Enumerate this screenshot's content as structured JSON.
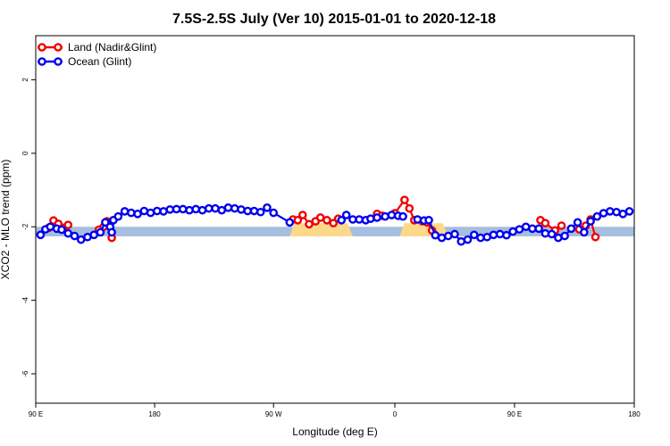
{
  "chart_data": {
    "type": "line",
    "title": "7.5S-2.5S July (Ver 10)   2015-01-01 to 2020-12-18",
    "xlabel": "Longitude (deg E)",
    "ylabel": "XCO2 - MLO trend (ppm)",
    "xlim": [
      90,
      460
    ],
    "ylim": [
      -6.8,
      3.2
    ],
    "xticks": [
      {
        "value": 90,
        "label": "90 E"
      },
      {
        "value": 163.5,
        "label": "180"
      },
      {
        "value": 237,
        "label": "90 W"
      },
      {
        "value": 312,
        "label": "0"
      },
      {
        "value": 386,
        "label": "90 E"
      },
      {
        "value": 460,
        "label": "180"
      }
    ],
    "yticks": [
      {
        "value": 2,
        "label": "2"
      },
      {
        "value": 0,
        "label": "0"
      },
      {
        "value": -2,
        "label": "-2"
      },
      {
        "value": -4,
        "label": "-4"
      },
      {
        "value": -6,
        "label": "-6"
      }
    ],
    "legend_position": "top-left",
    "colors": {
      "land": "#ee0000",
      "ocean": "#0000ee",
      "ocean_band": "#a6bedf",
      "land_band": "#fcd98a"
    },
    "background_band": {
      "y_low": -2.26,
      "y_high": -2.0
    },
    "land_band_segments": [
      [
        247,
        286
      ],
      [
        315,
        345
      ]
    ],
    "series": [
      {
        "name": "Land (Nadir&Glint)",
        "color": "#ee0000",
        "segments": [
          [
            [
              98,
              -2.03
            ],
            [
              101,
              -1.83
            ],
            [
              104,
              -1.92
            ],
            [
              107,
              -2.03
            ],
            [
              110,
              -1.95
            ]
          ],
          [
            [
              129,
              -2.08
            ],
            [
              132,
              -2.0
            ],
            [
              134,
              -1.85
            ],
            [
              137,
              -2.3
            ]
          ],
          [
            [
              249,
              -1.8
            ],
            [
              252,
              -1.82
            ],
            [
              255,
              -1.68
            ],
            [
              259,
              -1.93
            ],
            [
              263,
              -1.85
            ],
            [
              266,
              -1.75
            ],
            [
              270,
              -1.82
            ],
            [
              274,
              -1.9
            ],
            [
              277,
              -1.78
            ]
          ],
          [
            [
              301,
              -1.65
            ],
            [
              304,
              -1.7
            ],
            [
              312,
              -1.63
            ],
            [
              318,
              -1.27
            ],
            [
              321,
              -1.5
            ],
            [
              324,
              -1.82
            ],
            [
              329,
              -1.85
            ],
            [
              332,
              -1.88
            ],
            [
              335,
              -2.1
            ]
          ],
          [
            [
              402,
              -1.82
            ],
            [
              405,
              -1.9
            ],
            [
              411,
              -2.1
            ],
            [
              415,
              -1.97
            ]
          ],
          [
            [
              426,
              -2.07
            ],
            [
              430,
              -1.97
            ],
            [
              433,
              -1.8
            ],
            [
              436,
              -2.28
            ]
          ]
        ]
      },
      {
        "name": "Ocean (Glint)",
        "color": "#0000ee",
        "segments": [
          [
            [
              93,
              -2.22
            ],
            [
              96,
              -2.07
            ],
            [
              99,
              -2.0
            ],
            [
              103,
              -2.05
            ],
            [
              106,
              -2.08
            ],
            [
              110,
              -2.18
            ],
            [
              114,
              -2.25
            ],
            [
              118,
              -2.35
            ],
            [
              122,
              -2.28
            ],
            [
              126,
              -2.22
            ],
            [
              130,
              -2.15
            ],
            [
              133,
              -1.88
            ],
            [
              136,
              -2.0
            ],
            [
              137,
              -2.15
            ],
            [
              138,
              -1.82
            ],
            [
              141,
              -1.72
            ],
            [
              145,
              -1.58
            ],
            [
              149,
              -1.62
            ],
            [
              153,
              -1.65
            ],
            [
              157,
              -1.57
            ],
            [
              161,
              -1.62
            ],
            [
              165,
              -1.57
            ],
            [
              169,
              -1.58
            ],
            [
              173,
              -1.53
            ],
            [
              177,
              -1.52
            ],
            [
              181,
              -1.52
            ],
            [
              185,
              -1.55
            ],
            [
              189,
              -1.52
            ],
            [
              193,
              -1.55
            ],
            [
              197,
              -1.5
            ],
            [
              201,
              -1.5
            ],
            [
              205,
              -1.55
            ],
            [
              209,
              -1.48
            ],
            [
              213,
              -1.5
            ],
            [
              217,
              -1.53
            ],
            [
              221,
              -1.57
            ],
            [
              225,
              -1.57
            ],
            [
              229,
              -1.6
            ],
            [
              233,
              -1.48
            ],
            [
              237,
              -1.62
            ],
            [
              247,
              -1.88
            ]
          ],
          [
            [
              279,
              -1.82
            ],
            [
              282,
              -1.68
            ],
            [
              286,
              -1.8
            ],
            [
              290,
              -1.8
            ],
            [
              294,
              -1.82
            ],
            [
              297,
              -1.78
            ],
            [
              301,
              -1.75
            ],
            [
              306,
              -1.72
            ],
            [
              310,
              -1.68
            ],
            [
              314,
              -1.7
            ],
            [
              317,
              -1.72
            ]
          ],
          [
            [
              326,
              -1.8
            ],
            [
              330,
              -1.83
            ],
            [
              333,
              -1.82
            ],
            [
              337,
              -2.23
            ],
            [
              341,
              -2.3
            ],
            [
              345,
              -2.25
            ],
            [
              349,
              -2.2
            ],
            [
              353,
              -2.4
            ],
            [
              357,
              -2.35
            ],
            [
              361,
              -2.22
            ],
            [
              365,
              -2.3
            ],
            [
              369,
              -2.28
            ],
            [
              373,
              -2.22
            ],
            [
              377,
              -2.2
            ],
            [
              381,
              -2.23
            ],
            [
              385,
              -2.13
            ],
            [
              389,
              -2.07
            ],
            [
              393,
              -2.0
            ],
            [
              397,
              -2.05
            ],
            [
              401,
              -2.05
            ],
            [
              405,
              -2.18
            ],
            [
              409,
              -2.2
            ],
            [
              413,
              -2.3
            ],
            [
              417,
              -2.25
            ],
            [
              421,
              -2.05
            ],
            [
              425,
              -1.88
            ],
            [
              429,
              -2.15
            ],
            [
              433,
              -1.85
            ],
            [
              437,
              -1.72
            ],
            [
              441,
              -1.63
            ],
            [
              445,
              -1.58
            ],
            [
              449,
              -1.6
            ],
            [
              453,
              -1.65
            ],
            [
              457,
              -1.58
            ]
          ]
        ]
      }
    ]
  }
}
